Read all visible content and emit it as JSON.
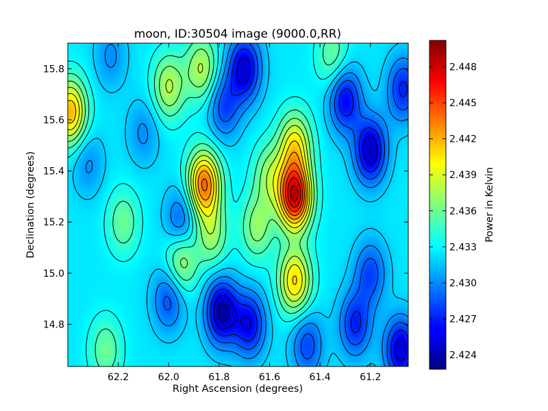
{
  "chart_data": {
    "type": "heatmap",
    "title": "moon, ID:30504 image (9000.0,RR)",
    "xlabel": "Right Ascension (degrees)",
    "ylabel": "Declination (degrees)",
    "colorbar_label": "Power in Kelvin",
    "xlim": [
      62.4,
      61.05
    ],
    "ylim": [
      14.635,
      15.9
    ],
    "x_ticks": [
      62.2,
      62.0,
      61.8,
      61.6,
      61.4,
      61.2
    ],
    "x_tick_labels": [
      "62.2",
      "62.0",
      "61.8",
      "61.6",
      "61.4",
      "61.2"
    ],
    "y_ticks": [
      14.8,
      15.0,
      15.2,
      15.4,
      15.6,
      15.8
    ],
    "y_tick_labels": [
      "14.8",
      "15.0",
      "15.2",
      "15.4",
      "15.6",
      "15.8"
    ],
    "clim": [
      2.4228,
      2.4502
    ],
    "colorbar_ticks": [
      2.424,
      2.427,
      2.43,
      2.433,
      2.436,
      2.439,
      2.442,
      2.445,
      2.448
    ],
    "colorbar_tick_labels": [
      "2.424",
      "2.427",
      "2.430",
      "2.433",
      "2.436",
      "2.439",
      "2.442",
      "2.445",
      "2.448"
    ],
    "colormap": "jet",
    "contours": true,
    "background_level": 2.4325,
    "features": [
      {
        "ra": 61.5,
        "dec": 15.3,
        "value": 2.448,
        "kind": "peak"
      },
      {
        "ra": 61.5,
        "dec": 15.5,
        "value": 2.44,
        "kind": "peak"
      },
      {
        "ra": 61.86,
        "dec": 15.35,
        "value": 2.444,
        "kind": "peak"
      },
      {
        "ra": 61.83,
        "dec": 15.15,
        "value": 2.437,
        "kind": "peak"
      },
      {
        "ra": 61.95,
        "dec": 15.05,
        "value": 2.438,
        "kind": "peak"
      },
      {
        "ra": 61.5,
        "dec": 14.97,
        "value": 2.441,
        "kind": "peak"
      },
      {
        "ra": 62.39,
        "dec": 15.63,
        "value": 2.442,
        "kind": "peak"
      },
      {
        "ra": 62.0,
        "dec": 15.73,
        "value": 2.438,
        "kind": "peak"
      },
      {
        "ra": 61.87,
        "dec": 15.8,
        "value": 2.438,
        "kind": "peak"
      },
      {
        "ra": 61.35,
        "dec": 15.85,
        "value": 2.436,
        "kind": "peak"
      },
      {
        "ra": 61.65,
        "dec": 15.18,
        "value": 2.437,
        "kind": "peak"
      },
      {
        "ra": 62.18,
        "dec": 15.2,
        "value": 2.436,
        "kind": "peak"
      },
      {
        "ra": 62.25,
        "dec": 14.7,
        "value": 2.436,
        "kind": "peak"
      },
      {
        "ra": 61.6,
        "dec": 15.38,
        "value": 2.437,
        "kind": "peak"
      },
      {
        "ra": 61.7,
        "dec": 15.8,
        "value": 2.425,
        "kind": "trough"
      },
      {
        "ra": 61.78,
        "dec": 15.65,
        "value": 2.428,
        "kind": "trough"
      },
      {
        "ra": 61.79,
        "dec": 14.85,
        "value": 2.424,
        "kind": "trough"
      },
      {
        "ra": 61.68,
        "dec": 14.8,
        "value": 2.426,
        "kind": "trough"
      },
      {
        "ra": 62.0,
        "dec": 14.9,
        "value": 2.428,
        "kind": "trough"
      },
      {
        "ra": 61.2,
        "dec": 15.48,
        "value": 2.4245,
        "kind": "trough"
      },
      {
        "ra": 61.3,
        "dec": 15.68,
        "value": 2.426,
        "kind": "trough"
      },
      {
        "ra": 61.2,
        "dec": 15.0,
        "value": 2.428,
        "kind": "trough"
      },
      {
        "ra": 61.26,
        "dec": 14.8,
        "value": 2.427,
        "kind": "trough"
      },
      {
        "ra": 61.08,
        "dec": 14.7,
        "value": 2.425,
        "kind": "trough"
      },
      {
        "ra": 61.07,
        "dec": 15.72,
        "value": 2.427,
        "kind": "trough"
      },
      {
        "ra": 61.95,
        "dec": 15.2,
        "value": 2.428,
        "kind": "trough"
      },
      {
        "ra": 62.32,
        "dec": 15.43,
        "value": 2.43,
        "kind": "trough"
      },
      {
        "ra": 62.23,
        "dec": 15.85,
        "value": 2.43,
        "kind": "trough"
      },
      {
        "ra": 61.45,
        "dec": 14.72,
        "value": 2.428,
        "kind": "trough"
      },
      {
        "ra": 62.1,
        "dec": 15.55,
        "value": 2.43,
        "kind": "trough"
      }
    ]
  }
}
